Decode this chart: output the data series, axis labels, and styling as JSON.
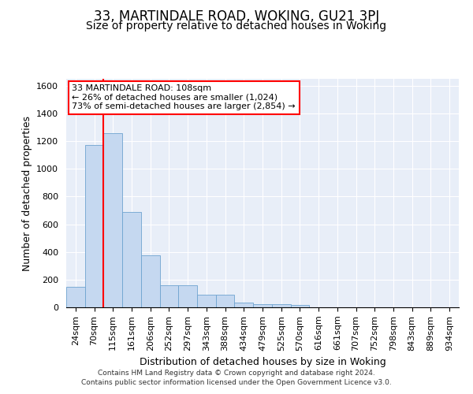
{
  "title1": "33, MARTINDALE ROAD, WOKING, GU21 3PJ",
  "title2": "Size of property relative to detached houses in Woking",
  "xlabel": "Distribution of detached houses by size in Woking",
  "ylabel": "Number of detached properties",
  "categories": [
    "24sqm",
    "70sqm",
    "115sqm",
    "161sqm",
    "206sqm",
    "252sqm",
    "297sqm",
    "343sqm",
    "388sqm",
    "434sqm",
    "479sqm",
    "525sqm",
    "570sqm",
    "616sqm",
    "661sqm",
    "707sqm",
    "752sqm",
    "798sqm",
    "843sqm",
    "889sqm",
    "934sqm"
  ],
  "values": [
    150,
    1170,
    1260,
    690,
    375,
    160,
    160,
    90,
    90,
    35,
    20,
    20,
    15,
    0,
    0,
    0,
    0,
    0,
    0,
    0,
    0
  ],
  "bar_color": "#c5d8f0",
  "bar_edge_color": "#6ea3d0",
  "vline_color": "red",
  "vline_bar_index": 2,
  "annotation_text": "33 MARTINDALE ROAD: 108sqm\n← 26% of detached houses are smaller (1,024)\n73% of semi-detached houses are larger (2,854) →",
  "annotation_box_facecolor": "white",
  "annotation_box_edgecolor": "red",
  "ylim": [
    0,
    1650
  ],
  "yticks": [
    0,
    200,
    400,
    600,
    800,
    1000,
    1200,
    1400,
    1600
  ],
  "bg_color": "#e8eef8",
  "grid_color": "white",
  "footer_line1": "Contains HM Land Registry data © Crown copyright and database right 2024.",
  "footer_line2": "Contains public sector information licensed under the Open Government Licence v3.0.",
  "title1_fontsize": 12,
  "title2_fontsize": 10,
  "ylabel_fontsize": 9,
  "xlabel_fontsize": 9,
  "tick_fontsize": 8,
  "footer_fontsize": 6.5
}
